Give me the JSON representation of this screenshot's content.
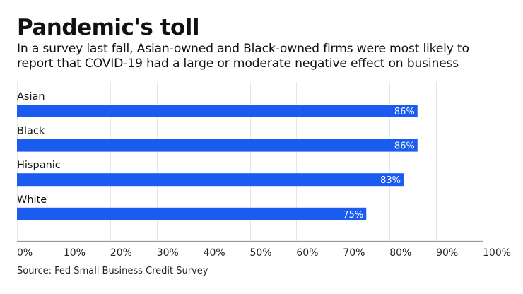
{
  "header": {
    "title": "Pandemic's toll",
    "subtitle_lines": [
      "In a survey last fall, Asian-owned and Black-owned firms were most likely to",
      "report that COVID-19 had a large or moderate negative effect on business"
    ]
  },
  "footer": {
    "source": "Source: Fed Small Business Credit Survey"
  },
  "colors": {
    "bar": "#1a5cf0",
    "grid": "#e6e6e6",
    "axis": "#999999",
    "label_inside": "#ffffff"
  },
  "chart_data": {
    "type": "bar",
    "orientation": "horizontal",
    "title": "Pandemic's toll",
    "subtitle": "In a survey last fall, Asian-owned and Black-owned firms were most likely to report that COVID-19 had a large or moderate negative effect on business",
    "categories": [
      "Asian",
      "Black",
      "Hispanic",
      "White"
    ],
    "values": [
      86,
      86,
      83,
      75
    ],
    "value_labels": [
      "86%",
      "86%",
      "83%",
      "75%"
    ],
    "xlabel": "",
    "ylabel": "",
    "xlim": [
      0,
      100
    ],
    "xticks": [
      0,
      10,
      20,
      30,
      40,
      50,
      60,
      70,
      80,
      90,
      100
    ],
    "xtick_labels": [
      "0%",
      "10%",
      "20%",
      "30%",
      "40%",
      "50%",
      "60%",
      "70%",
      "80%",
      "90%",
      "100%"
    ],
    "grid": true,
    "legend": "none"
  }
}
